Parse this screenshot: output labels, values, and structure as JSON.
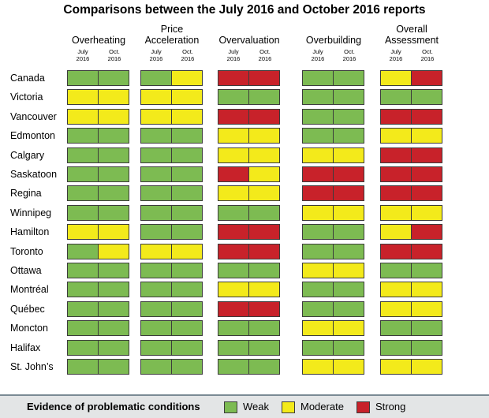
{
  "title": "Comparisons between the July 2016 and October 2016 reports",
  "chart_data": {
    "type": "heatmap",
    "title": "Comparisons between the July 2016 and October 2016 reports",
    "groups": [
      {
        "label": "Overheating",
        "sub": [
          "July 2016",
          "Oct. 2016"
        ]
      },
      {
        "label": "Price Acceleration",
        "sub": [
          "July 2016",
          "Oct. 2016"
        ]
      },
      {
        "label": "Overvaluation",
        "sub": [
          "July 2016",
          "Oct. 2016"
        ]
      },
      {
        "label": "Overbuilding",
        "sub": [
          "July 2016",
          "Oct. 2016"
        ]
      },
      {
        "label": "Overall Assessment",
        "sub": [
          "July 2016",
          "Oct. 2016"
        ]
      }
    ],
    "rows": [
      "Canada",
      "Victoria",
      "Vancouver",
      "Edmonton",
      "Calgary",
      "Saskatoon",
      "Regina",
      "Winnipeg",
      "Hamilton",
      "Toronto",
      "Ottawa",
      "Montréal",
      "Québec",
      "Moncton",
      "Halifax",
      "St. John’s"
    ],
    "values": [
      [
        "W",
        "W",
        "W",
        "M",
        "S",
        "S",
        "W",
        "W",
        "M",
        "S"
      ],
      [
        "M",
        "M",
        "M",
        "M",
        "W",
        "W",
        "W",
        "W",
        "W",
        "W"
      ],
      [
        "M",
        "M",
        "M",
        "M",
        "S",
        "S",
        "W",
        "W",
        "S",
        "S"
      ],
      [
        "W",
        "W",
        "W",
        "W",
        "M",
        "M",
        "W",
        "W",
        "M",
        "M"
      ],
      [
        "W",
        "W",
        "W",
        "W",
        "M",
        "M",
        "M",
        "M",
        "S",
        "S"
      ],
      [
        "W",
        "W",
        "W",
        "W",
        "S",
        "M",
        "S",
        "S",
        "S",
        "S"
      ],
      [
        "W",
        "W",
        "W",
        "W",
        "M",
        "M",
        "S",
        "S",
        "S",
        "S"
      ],
      [
        "W",
        "W",
        "W",
        "W",
        "W",
        "W",
        "M",
        "M",
        "M",
        "M"
      ],
      [
        "M",
        "M",
        "W",
        "W",
        "S",
        "S",
        "W",
        "W",
        "M",
        "S"
      ],
      [
        "W",
        "M",
        "M",
        "M",
        "S",
        "S",
        "W",
        "W",
        "S",
        "S"
      ],
      [
        "W",
        "W",
        "W",
        "W",
        "W",
        "W",
        "M",
        "M",
        "W",
        "W"
      ],
      [
        "W",
        "W",
        "W",
        "W",
        "M",
        "M",
        "W",
        "W",
        "M",
        "M"
      ],
      [
        "W",
        "W",
        "W",
        "W",
        "S",
        "S",
        "W",
        "W",
        "M",
        "M"
      ],
      [
        "W",
        "W",
        "W",
        "W",
        "W",
        "W",
        "M",
        "M",
        "W",
        "W"
      ],
      [
        "W",
        "W",
        "W",
        "W",
        "W",
        "W",
        "W",
        "W",
        "W",
        "W"
      ],
      [
        "W",
        "W",
        "W",
        "W",
        "W",
        "W",
        "M",
        "M",
        "M",
        "M"
      ]
    ],
    "levels": {
      "W": {
        "label": "Weak",
        "color": "#7dbb52"
      },
      "M": {
        "label": "Moderate",
        "color": "#f3ea1b"
      },
      "S": {
        "label": "Strong",
        "color": "#c8222a"
      }
    }
  },
  "legend": {
    "title": "Evidence of problematic conditions",
    "items": [
      "Weak",
      "Moderate",
      "Strong"
    ]
  }
}
